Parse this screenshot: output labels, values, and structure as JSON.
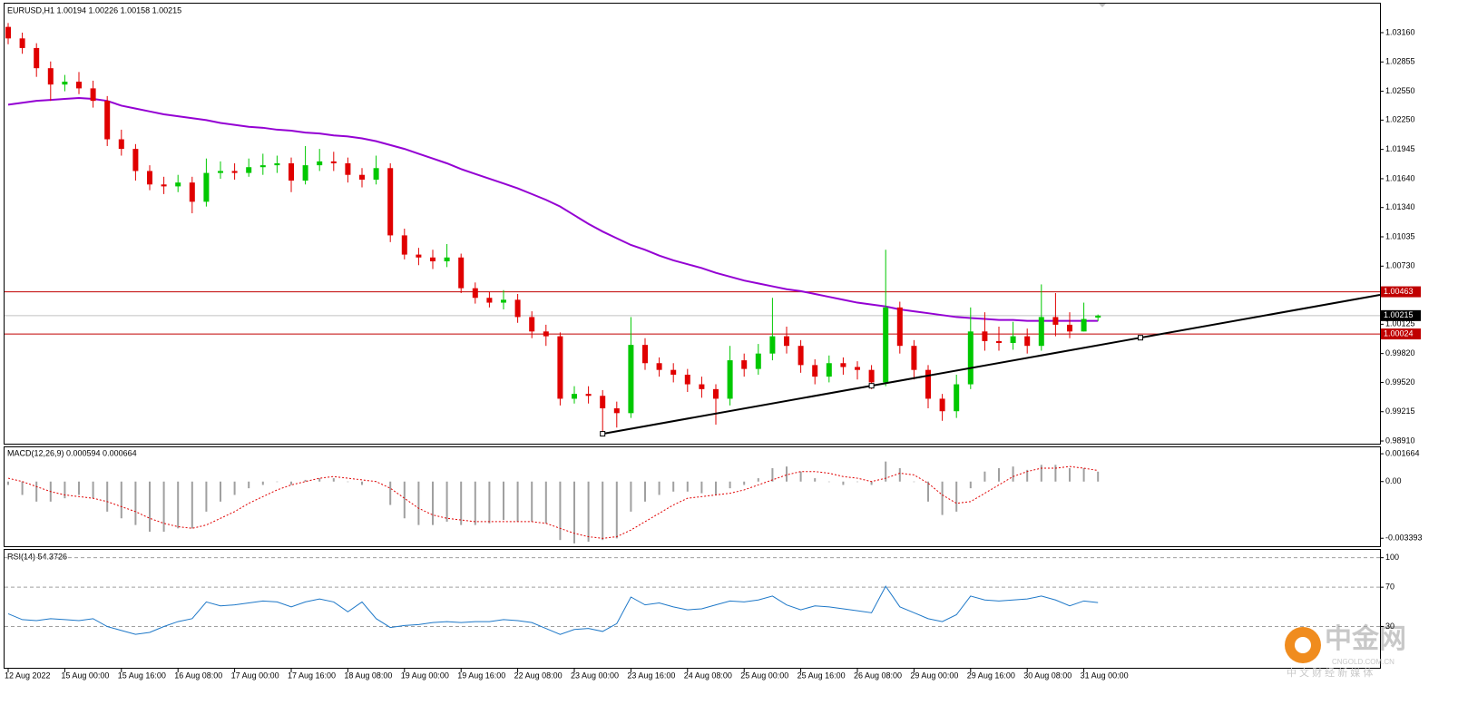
{
  "chart_data": [
    {
      "type": "candlestick",
      "title": "EURUSD,H1  1.00194 1.00226 1.00158 1.00215",
      "categories": [
        "12 Aug 2022",
        null,
        null,
        null,
        "15 Aug 00:00",
        null,
        null,
        null,
        "15 Aug 16:00",
        null,
        null,
        null,
        "16 Aug 08:00",
        null,
        null,
        null,
        "17 Aug 00:00",
        null,
        null,
        null,
        "17 Aug 16:00",
        null,
        null,
        null,
        "18 Aug 08:00",
        null,
        null,
        null,
        "19 Aug 00:00",
        null,
        null,
        null,
        "19 Aug 16:00",
        null,
        null,
        null,
        "22 Aug 08:00",
        null,
        null,
        null,
        "23 Aug 00:00",
        null,
        null,
        null,
        "23 Aug 16:00",
        null,
        null,
        null,
        "24 Aug 08:00",
        null,
        null,
        null,
        "25 Aug 00:00",
        null,
        null,
        null,
        "25 Aug 16:00",
        null,
        null,
        null,
        "26 Aug 08:00",
        null,
        null,
        null,
        "29 Aug 00:00",
        null,
        null,
        null,
        "29 Aug 16:00",
        null,
        null,
        null,
        "30 Aug 08:00",
        null,
        null,
        null,
        "31 Aug 00:00",
        null
      ],
      "open": [
        1.0322,
        1.031,
        1.03,
        1.0279,
        1.0262,
        1.0265,
        1.0258,
        1.0245,
        1.0205,
        1.0195,
        1.0172,
        1.0158,
        1.0156,
        1.016,
        1.014,
        1.017,
        1.0172,
        1.017,
        1.0176,
        1.0178,
        1.018,
        1.0162,
        1.0178,
        1.0182,
        1.018,
        1.0168,
        1.0163,
        1.0175,
        1.0105,
        1.0085,
        1.0082,
        1.0078,
        1.0082,
        1.005,
        1.004,
        1.0035,
        1.0038,
        1.002,
        1.0005,
        1.0,
        0.9935,
        0.994,
        0.9938,
        0.9925,
        0.992,
        0.9991,
        0.9972,
        0.9965,
        0.996,
        0.995,
        0.9945,
        0.9935,
        0.9975,
        0.9966,
        0.9982,
        1.0,
        0.999,
        0.997,
        0.9958,
        0.9972,
        0.9968,
        0.9965,
        0.9952,
        1.003,
        0.999,
        0.9965,
        0.9935,
        0.9922,
        0.995,
        1.0005,
        0.9995,
        0.9993,
        1.0,
        0.999,
        1.002,
        1.0012,
        1.0005,
        1.00194
      ],
      "high": [
        1.0326,
        1.0316,
        1.0305,
        1.0286,
        1.0272,
        1.0275,
        1.0266,
        1.025,
        1.0215,
        1.02,
        1.0178,
        1.0166,
        1.0168,
        1.0166,
        1.0185,
        1.0182,
        1.018,
        1.0185,
        1.019,
        1.0188,
        1.0186,
        1.0198,
        1.0195,
        1.0192,
        1.0186,
        1.0175,
        1.0188,
        1.018,
        1.0112,
        1.0092,
        1.009,
        1.0096,
        1.0086,
        1.0056,
        1.0046,
        1.0048,
        1.0044,
        1.0026,
        1.0012,
        1.0004,
        0.9948,
        0.9948,
        0.9944,
        0.9932,
        1.002,
        0.9998,
        0.9978,
        0.9972,
        0.9966,
        0.9958,
        0.995,
        0.999,
        0.9982,
        0.9992,
        1.004,
        1.001,
        0.9996,
        0.9976,
        0.998,
        0.9978,
        0.9974,
        0.997,
        1.009,
        1.0036,
        0.9996,
        0.997,
        0.994,
        0.996,
        1.003,
        1.0025,
        1.001,
        1.0015,
        1.0008,
        1.0054,
        1.0045,
        1.0025,
        1.0035,
        1.00226
      ],
      "low": [
        1.0304,
        1.0294,
        1.027,
        1.0245,
        1.0255,
        1.0252,
        1.0238,
        1.0198,
        1.0188,
        1.0162,
        1.0152,
        1.0148,
        1.015,
        1.0128,
        1.0135,
        1.0164,
        1.0163,
        1.0166,
        1.0168,
        1.017,
        1.015,
        1.0158,
        1.0172,
        1.0172,
        1.016,
        1.0155,
        1.0158,
        1.0098,
        1.008,
        1.0074,
        1.007,
        1.0072,
        1.0045,
        1.0034,
        1.003,
        1.0028,
        1.0014,
        0.9998,
        0.999,
        0.9928,
        0.993,
        0.993,
        0.9897,
        0.9905,
        0.9915,
        0.9965,
        0.9958,
        0.9952,
        0.9942,
        0.9936,
        0.9908,
        0.9928,
        0.9958,
        0.996,
        0.9975,
        0.9982,
        0.9962,
        0.995,
        0.9952,
        0.996,
        0.9955,
        0.9945,
        0.9948,
        0.9982,
        0.9955,
        0.9925,
        0.9912,
        0.9915,
        0.9945,
        0.9985,
        0.9985,
        0.9986,
        0.9982,
        0.9985,
        1.0,
        0.9998,
        1.0005,
        1.00158
      ],
      "close": [
        1.031,
        1.03,
        1.0279,
        1.0262,
        1.0265,
        1.0258,
        1.0245,
        1.0205,
        1.0195,
        1.0172,
        1.0158,
        1.0156,
        1.016,
        1.014,
        1.017,
        1.0172,
        1.017,
        1.0176,
        1.0178,
        1.018,
        1.0162,
        1.0178,
        1.0182,
        1.018,
        1.0168,
        1.0163,
        1.0175,
        1.0105,
        1.0085,
        1.0082,
        1.0078,
        1.0082,
        1.005,
        1.004,
        1.0035,
        1.0038,
        1.002,
        1.0005,
        1.0,
        0.9935,
        0.994,
        0.9938,
        0.9925,
        0.992,
        0.9991,
        0.9972,
        0.9965,
        0.996,
        0.995,
        0.9945,
        0.9935,
        0.9975,
        0.9966,
        0.9982,
        1.0,
        0.999,
        0.997,
        0.9958,
        0.9972,
        0.9968,
        0.9965,
        0.9952,
        1.003,
        0.999,
        0.9965,
        0.9935,
        0.9922,
        0.995,
        1.0005,
        0.9995,
        0.9993,
        1.0,
        0.999,
        1.002,
        1.0012,
        1.0005,
        1.0018,
        1.00215
      ],
      "up_color": "#00c800",
      "down_color": "#e00000",
      "ma": {
        "color": "#9400d3",
        "values": [
          1.0241,
          1.0243,
          1.0245,
          1.0246,
          1.0247,
          1.0248,
          1.0247,
          1.0245,
          1.024,
          1.0237,
          1.0234,
          1.0231,
          1.0229,
          1.0227,
          1.0225,
          1.0222,
          1.022,
          1.0218,
          1.0217,
          1.0215,
          1.0214,
          1.0212,
          1.0211,
          1.0209,
          1.0208,
          1.0206,
          1.0203,
          1.0199,
          1.0195,
          1.019,
          1.0185,
          1.018,
          1.0174,
          1.0169,
          1.0164,
          1.0159,
          1.0154,
          1.0148,
          1.0142,
          1.0135,
          1.0126,
          1.0117,
          1.0109,
          1.0102,
          1.0095,
          1.009,
          1.0084,
          1.0079,
          1.0075,
          1.0071,
          1.0066,
          1.0062,
          1.0058,
          1.0055,
          1.0052,
          1.0049,
          1.0047,
          1.0044,
          1.0041,
          1.0038,
          1.0035,
          1.0033,
          1.0031,
          1.0028,
          1.0026,
          1.0024,
          1.0022,
          1.002,
          1.0019,
          1.0018,
          1.0017,
          1.0017,
          1.0016,
          1.0016,
          1.0016,
          1.0016,
          1.0016,
          1.0016
        ]
      },
      "trendline": {
        "color": "#000000",
        "x": [
          42,
          61,
          80
        ],
        "values": [
          0.98985,
          0.99485,
          0.99985
        ]
      },
      "hlines": [
        {
          "value": 1.00463,
          "color": "#c00000"
        },
        {
          "value": 1.00215,
          "color": "#000000"
        },
        {
          "value": 1.00024,
          "color": "#c00000"
        }
      ],
      "ylim": [
        0.98882,
        1.03462
      ],
      "yticks": [
        {
          "value": 1.0316,
          "label": "1.03160"
        },
        1.02855,
        {
          "value": 1.0255,
          "label": "1.02550"
        },
        {
          "value": 1.0225,
          "label": "1.02250"
        },
        1.01945,
        {
          "value": 1.0164,
          "label": "1.01640"
        },
        {
          "value": 1.0134,
          "label": "1.01340"
        },
        1.01035,
        {
          "value": 1.0073,
          "label": "1.00730"
        },
        1.00125,
        {
          "value": 0.9982,
          "label": "0.99820"
        },
        {
          "value": 0.9952,
          "label": "0.99520"
        },
        0.99215,
        {
          "value": 0.9891,
          "label": "0.98910"
        }
      ]
    },
    {
      "type": "macd",
      "title": "MACD(12,26,9) 0.000594 0.000664",
      "histogram": {
        "color": "#a0a0a0",
        "values": [
          -0.0002,
          -0.0008,
          -0.0012,
          -0.0012,
          -0.001,
          -0.0008,
          -0.001,
          -0.0018,
          -0.0022,
          -0.0026,
          -0.003,
          -0.003,
          -0.0028,
          -0.0028,
          -0.0018,
          -0.0012,
          -0.0008,
          -0.0004,
          -0.0002,
          0.0,
          -0.0002,
          0.0001,
          0.0002,
          0.0002,
          0.0,
          -0.0002,
          0.0,
          -0.0014,
          -0.0022,
          -0.0026,
          -0.0026,
          -0.0024,
          -0.0026,
          -0.0026,
          -0.0025,
          -0.0023,
          -0.0024,
          -0.0024,
          -0.0025,
          -0.0035,
          -0.0037,
          -0.0036,
          -0.0035,
          -0.0034,
          -0.0018,
          -0.0012,
          -0.0008,
          -0.0006,
          -0.0006,
          -0.0007,
          -0.0008,
          -0.0004,
          -0.0002,
          0.0002,
          0.0008,
          0.0009,
          0.0006,
          0.0002,
          0.0,
          -0.0002,
          0.0,
          -0.0002,
          0.0012,
          0.0008,
          0.0,
          -0.0012,
          -0.002,
          -0.0018,
          -0.0004,
          0.0006,
          0.0008,
          0.0009,
          0.0007,
          0.001,
          0.001,
          0.0008,
          0.0008,
          0.000594
        ]
      },
      "signal": {
        "color": "#e00000",
        "values": [
          0.0002,
          0.0,
          -0.0003,
          -0.0006,
          -0.0008,
          -0.0009,
          -0.001,
          -0.0012,
          -0.0015,
          -0.0018,
          -0.0022,
          -0.0025,
          -0.0027,
          -0.0028,
          -0.0026,
          -0.0022,
          -0.0018,
          -0.0013,
          -0.0009,
          -0.0005,
          -0.0002,
          0.0,
          0.0002,
          0.0003,
          0.0002,
          0.0001,
          0.0,
          -0.0004,
          -0.001,
          -0.0016,
          -0.002,
          -0.0022,
          -0.0023,
          -0.0024,
          -0.0024,
          -0.0024,
          -0.0024,
          -0.0024,
          -0.0025,
          -0.0028,
          -0.0031,
          -0.0033,
          -0.0034,
          -0.0033,
          -0.0029,
          -0.0024,
          -0.0019,
          -0.0014,
          -0.001,
          -0.0009,
          -0.0008,
          -0.0007,
          -0.0005,
          -0.0002,
          0.0001,
          0.0004,
          0.0006,
          0.0006,
          0.0005,
          0.0003,
          0.0002,
          0.0,
          0.0002,
          0.0005,
          0.0004,
          -0.0001,
          -0.0008,
          -0.0013,
          -0.0012,
          -0.0007,
          -0.0002,
          0.0003,
          0.0006,
          0.0008,
          0.0008,
          0.0009,
          0.0008,
          0.000664
        ]
      },
      "ylim": [
        -0.00387,
        0.00205
      ],
      "yticks": [
        0.001664,
        {
          "value": 0,
          "label": "0.00"
        },
        -0.003393
      ]
    },
    {
      "type": "rsi",
      "title": "RSI(14) 54.3726",
      "color": "#1e78c8",
      "values": [
        43,
        37,
        36,
        38,
        37,
        36,
        38,
        30,
        26,
        22,
        24,
        30,
        35,
        38,
        55,
        51,
        52,
        54,
        56,
        55,
        50,
        55,
        58,
        55,
        45,
        55,
        38,
        29,
        31,
        32,
        34,
        35,
        34,
        35,
        35,
        37,
        36,
        34,
        28,
        22,
        27,
        28,
        25,
        33,
        60,
        52,
        54,
        50,
        47,
        48,
        52,
        56,
        55,
        57,
        61,
        52,
        47,
        51,
        50,
        48,
        46,
        44,
        71,
        50,
        44,
        38,
        35,
        42,
        61,
        57,
        56,
        57,
        58,
        61,
        57,
        51,
        56,
        54.3726
      ],
      "ylim": [
        -12,
        108
      ],
      "yticks": [
        100,
        70,
        30
      ]
    }
  ],
  "watermark": {
    "brand": "中金网",
    "site": "CNGOLD.COM.CN",
    "slogan": "中 文 财 经 新 媒 体"
  }
}
